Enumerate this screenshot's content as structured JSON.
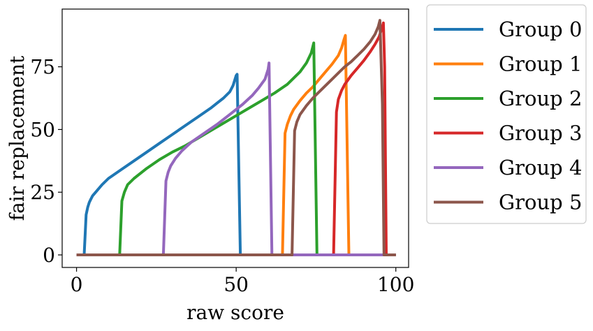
{
  "chart_data": {
    "type": "line",
    "title": "",
    "xlabel": "raw score",
    "ylabel": "fair replacement",
    "xlim": [
      -4.5,
      104
    ],
    "ylim": [
      -5,
      98
    ],
    "xticks": [
      0,
      50,
      100
    ],
    "yticks": [
      0,
      25,
      50,
      75
    ],
    "grid": false,
    "legend_position": "outside-right",
    "series": [
      {
        "name": "Group 0",
        "color": "#1f77b4",
        "x": [
          0,
          2.4,
          3,
          3.5,
          4,
          5,
          6,
          8,
          10,
          14,
          18,
          22,
          26,
          30,
          34,
          38,
          42,
          44,
          46,
          48,
          49,
          50,
          50.3,
          51.3,
          100
        ],
        "y": [
          0,
          0,
          16,
          19,
          21,
          23.5,
          25,
          28,
          30.5,
          34,
          37.5,
          41,
          44.5,
          48,
          51.5,
          55,
          58.5,
          60.5,
          62.5,
          65,
          67.5,
          71.5,
          72,
          0,
          0
        ]
      },
      {
        "name": "Group 1",
        "color": "#ff7f0e",
        "x": [
          0,
          64.5,
          65.3,
          66,
          67,
          68,
          70,
          72,
          74,
          76,
          78,
          80,
          82,
          83,
          83.8,
          84.2,
          85.3,
          100
        ],
        "y": [
          0,
          0,
          48.5,
          52,
          55.5,
          58,
          61.5,
          64.5,
          67,
          70,
          73,
          76,
          79.5,
          82.5,
          86,
          87.5,
          0,
          0
        ]
      },
      {
        "name": "Group 2",
        "color": "#2ca02c",
        "x": [
          0,
          13.5,
          14.2,
          15,
          16,
          18,
          22,
          26,
          30,
          34,
          38,
          42,
          46,
          50,
          54,
          58,
          62,
          66,
          70,
          72,
          73.5,
          74.3,
          75.3,
          100
        ],
        "y": [
          0,
          0,
          21.5,
          25,
          28,
          30.5,
          34.5,
          38,
          41,
          43.5,
          46.5,
          49.5,
          52.5,
          55.5,
          58.5,
          61.5,
          64.5,
          68,
          73,
          76.5,
          80.5,
          84.5,
          0,
          0
        ]
      },
      {
        "name": "Group 3",
        "color": "#d62728",
        "x": [
          0,
          80.5,
          81.4,
          82,
          83,
          84,
          86,
          88,
          90,
          92,
          93.5,
          94.8,
          95.4,
          95.9,
          96.1,
          96.5,
          97,
          100
        ],
        "y": [
          0,
          0,
          57,
          62,
          65.5,
          68,
          71.5,
          74.5,
          77.5,
          81,
          84,
          87,
          89.5,
          91.5,
          92.5,
          75,
          0,
          0
        ]
      },
      {
        "name": "Group 4",
        "color": "#9467bd",
        "x": [
          0,
          27.2,
          28,
          28.7,
          29.5,
          31,
          33,
          36,
          40,
          44,
          48,
          52,
          55,
          57,
          59,
          60,
          60.3,
          61.2,
          100
        ],
        "y": [
          0,
          0,
          29.5,
          33,
          35.5,
          38.5,
          41.5,
          45,
          48.5,
          52,
          56,
          60,
          63.5,
          66.5,
          70,
          74,
          76.5,
          0,
          0
        ]
      },
      {
        "name": "Group 5",
        "color": "#8c564b",
        "x": [
          0,
          67.5,
          68.3,
          69,
          70,
          72,
          74,
          76,
          78,
          80,
          82,
          84,
          86,
          88,
          90,
          92,
          93.5,
          94.5,
          95,
          95.8,
          96.3,
          100
        ],
        "y": [
          0,
          0,
          49.5,
          53,
          56,
          59.5,
          62.5,
          65,
          67.5,
          70,
          72.5,
          75,
          77,
          79.5,
          82,
          85,
          88,
          91,
          93.5,
          60,
          0,
          0
        ]
      }
    ]
  }
}
